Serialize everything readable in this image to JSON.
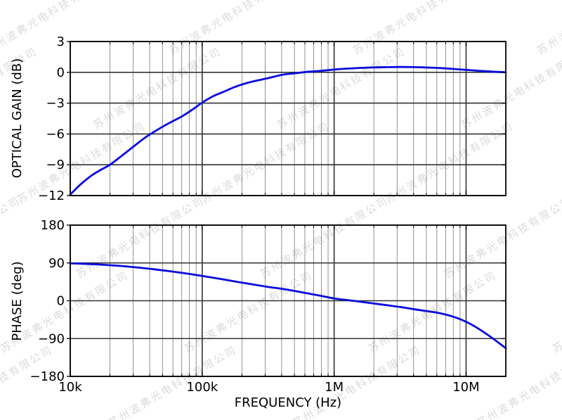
{
  "figure": {
    "background": "#ffffff",
    "frame_color": "#000000",
    "major_grid_color": "#333333",
    "minor_grid_color": "#777777",
    "curve_color": "#0b0bdd",
    "grid": "on",
    "legend": "none"
  },
  "watermark": {
    "text": "苏州波弗光电科技有限公司"
  },
  "x_axis": {
    "label": "FREQUENCY (Hz)",
    "scale": "log",
    "xlim": [
      10000,
      20000000
    ],
    "major_ticks": [
      10000,
      100000,
      1000000,
      10000000
    ],
    "major_tick_labels": [
      "10k",
      "100k",
      "1M",
      "10M"
    ]
  },
  "chart_data": [
    {
      "type": "line",
      "name": "optical-gain-subplot",
      "title": "",
      "xlabel": "FREQUENCY (Hz)",
      "ylabel": "OPTICAL GAIN (dB)",
      "x_scale": "log",
      "xlim": [
        10000,
        20000000
      ],
      "ylim": [
        -12,
        3
      ],
      "yticks": [
        3,
        0,
        -3,
        -6,
        -9,
        -12
      ],
      "ytick_labels": [
        "3",
        "0",
        "−3",
        "−6",
        "−9",
        "−12"
      ],
      "grid": true,
      "line_color": "#0b0bdd",
      "series": [
        {
          "name": "optical gain",
          "x": [
            10000,
            12000,
            14500,
            17000,
            20000,
            25000,
            30000,
            37000,
            45000,
            56000,
            70000,
            85000,
            100000,
            120000,
            145000,
            175000,
            210000,
            260000,
            320000,
            400000,
            500000,
            630000,
            800000,
            1000000,
            1300000,
            1600000,
            2000000,
            2500000,
            3200000,
            4000000,
            5000000,
            6300000,
            8000000,
            10000000,
            12500000,
            16000000,
            20000000
          ],
          "y": [
            -11.9,
            -10.9,
            -10.05,
            -9.5,
            -9.0,
            -8.05,
            -7.25,
            -6.35,
            -5.65,
            -4.95,
            -4.3,
            -3.6,
            -2.95,
            -2.35,
            -1.9,
            -1.45,
            -1.1,
            -0.8,
            -0.55,
            -0.25,
            -0.1,
            0.05,
            0.15,
            0.27,
            0.37,
            0.43,
            0.48,
            0.5,
            0.52,
            0.51,
            0.47,
            0.42,
            0.33,
            0.24,
            0.15,
            0.06,
            0.01
          ]
        }
      ]
    },
    {
      "type": "line",
      "name": "phase-subplot",
      "title": "",
      "xlabel": "FREQUENCY (Hz)",
      "ylabel": "PHASE (deg)",
      "x_scale": "log",
      "xlim": [
        10000,
        20000000
      ],
      "ylim": [
        -180,
        180
      ],
      "yticks": [
        180,
        90,
        0,
        -90,
        -180
      ],
      "ytick_labels": [
        "180",
        "90",
        "0",
        "−90",
        "−180"
      ],
      "grid": true,
      "line_color": "#0b0bdd",
      "series": [
        {
          "name": "phase",
          "x": [
            10000,
            12000,
            14500,
            17000,
            20000,
            25000,
            30000,
            37000,
            45000,
            56000,
            70000,
            85000,
            100000,
            120000,
            145000,
            175000,
            210000,
            260000,
            320000,
            400000,
            500000,
            630000,
            800000,
            1000000,
            1300000,
            1600000,
            2000000,
            2500000,
            3200000,
            4000000,
            5000000,
            6300000,
            8000000,
            10000000,
            12500000,
            16000000,
            20000000
          ],
          "y": [
            89,
            88.2,
            87.2,
            86,
            84.6,
            82.4,
            80.2,
            77.3,
            74.2,
            70.5,
            66.5,
            62.5,
            59,
            55,
            50.7,
            46.3,
            42,
            37.2,
            32.7,
            28.5,
            23.5,
            17.5,
            11.5,
            5.5,
            1,
            -2.5,
            -6.5,
            -10.5,
            -15,
            -20,
            -24.5,
            -29.5,
            -38,
            -50,
            -67,
            -90,
            -113
          ]
        }
      ]
    }
  ]
}
